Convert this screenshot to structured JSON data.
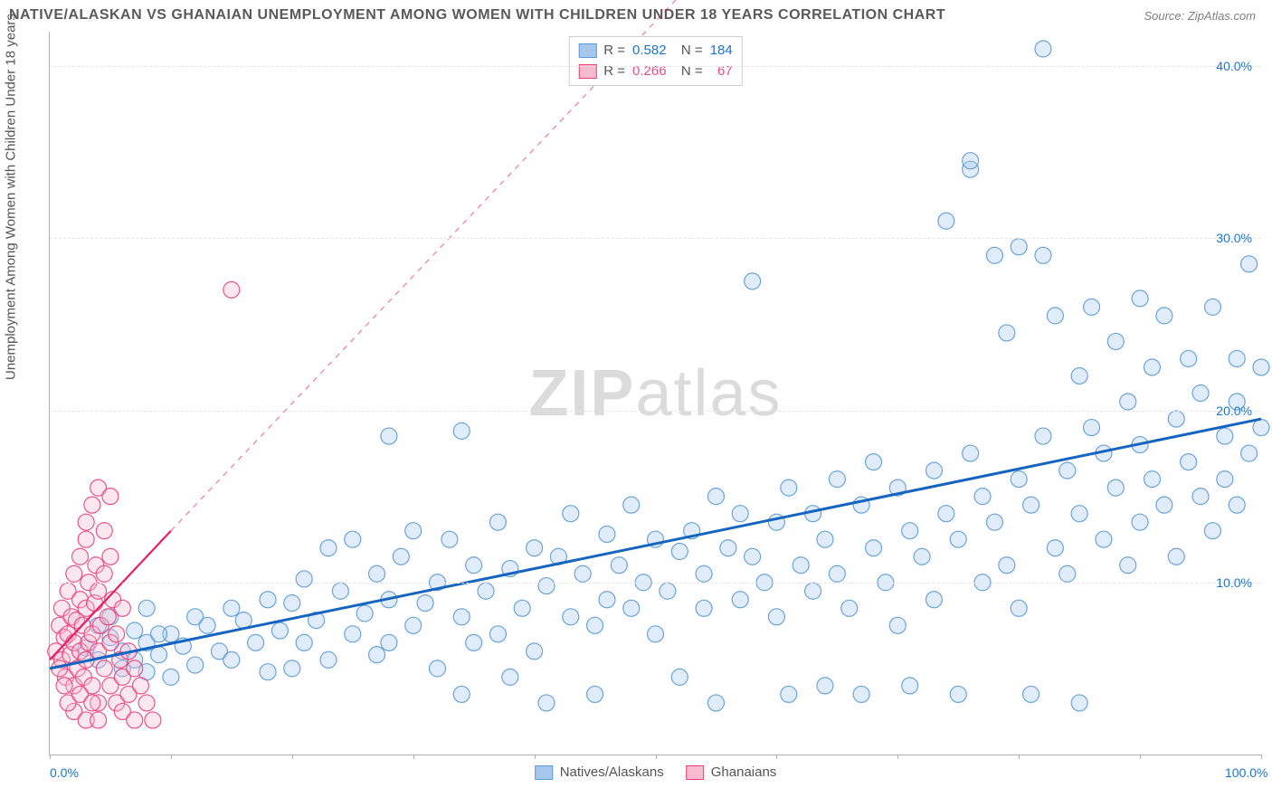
{
  "title": "NATIVE/ALASKAN VS GHANAIAN UNEMPLOYMENT AMONG WOMEN WITH CHILDREN UNDER 18 YEARS CORRELATION CHART",
  "source": "Source: ZipAtlas.com",
  "ylabel": "Unemployment Among Women with Children Under 18 years",
  "watermark_a": "ZIP",
  "watermark_b": "atlas",
  "chart": {
    "type": "scatter",
    "background_color": "#ffffff",
    "grid_color": "#e5e5e5",
    "axis_color": "#b0b0b0",
    "tick_label_color": "#1976d2",
    "xlim": [
      0,
      100
    ],
    "ylim": [
      0,
      42
    ],
    "x_ticks": [
      0,
      10,
      20,
      30,
      40,
      50,
      60,
      70,
      80,
      90,
      100
    ],
    "x_tick_labels": {
      "0": "0.0%",
      "100": "100.0%"
    },
    "y_ticks": [
      10,
      20,
      30,
      40
    ],
    "y_tick_labels": {
      "10": "10.0%",
      "20": "20.0%",
      "30": "30.0%",
      "40": "40.0%"
    },
    "marker_radius": 9,
    "marker_fill_opacity": 0.35,
    "marker_stroke_opacity": 0.9,
    "marker_stroke_width": 1.2,
    "series": [
      {
        "name": "Natives/Alaskans",
        "color_fill": "#a6c8ed",
        "color_stroke": "#5b9bd5",
        "R": "0.582",
        "N": "184",
        "trend": {
          "x1": 0,
          "y1": 5.0,
          "x2": 100,
          "y2": 19.5,
          "dash_from_x": 100,
          "stroke": "#1565c0",
          "stroke_width": 3
        },
        "points": [
          [
            3,
            6.2
          ],
          [
            4,
            5.5
          ],
          [
            5,
            6.8
          ],
          [
            6,
            5.0
          ],
          [
            7,
            7.2
          ],
          [
            8,
            4.8
          ],
          [
            8,
            6.5
          ],
          [
            9,
            5.8
          ],
          [
            10,
            7.0
          ],
          [
            10,
            4.5
          ],
          [
            11,
            6.3
          ],
          [
            12,
            8.0
          ],
          [
            12,
            5.2
          ],
          [
            13,
            7.5
          ],
          [
            14,
            6.0
          ],
          [
            15,
            8.5
          ],
          [
            15,
            5.5
          ],
          [
            16,
            7.8
          ],
          [
            17,
            6.5
          ],
          [
            18,
            9.0
          ],
          [
            18,
            4.8
          ],
          [
            19,
            7.2
          ],
          [
            20,
            8.8
          ],
          [
            20,
            5.0
          ],
          [
            21,
            10.2
          ],
          [
            21,
            6.5
          ],
          [
            22,
            7.8
          ],
          [
            23,
            12.0
          ],
          [
            23,
            5.5
          ],
          [
            24,
            9.5
          ],
          [
            25,
            7.0
          ],
          [
            25,
            12.5
          ],
          [
            26,
            8.2
          ],
          [
            27,
            10.5
          ],
          [
            27,
            5.8
          ],
          [
            28,
            9.0
          ],
          [
            28,
            6.5
          ],
          [
            29,
            11.5
          ],
          [
            30,
            7.5
          ],
          [
            30,
            13.0
          ],
          [
            31,
            8.8
          ],
          [
            32,
            10.0
          ],
          [
            32,
            5.0
          ],
          [
            33,
            12.5
          ],
          [
            34,
            8.0
          ],
          [
            34,
            3.5
          ],
          [
            35,
            11.0
          ],
          [
            35,
            6.5
          ],
          [
            36,
            9.5
          ],
          [
            37,
            13.5
          ],
          [
            37,
            7.0
          ],
          [
            38,
            10.8
          ],
          [
            38,
            4.5
          ],
          [
            39,
            8.5
          ],
          [
            40,
            12.0
          ],
          [
            40,
            6.0
          ],
          [
            41,
            9.8
          ],
          [
            41,
            3.0
          ],
          [
            42,
            11.5
          ],
          [
            43,
            8.0
          ],
          [
            43,
            14.0
          ],
          [
            44,
            10.5
          ],
          [
            45,
            7.5
          ],
          [
            45,
            3.5
          ],
          [
            46,
            12.8
          ],
          [
            46,
            9.0
          ],
          [
            47,
            11.0
          ],
          [
            48,
            8.5
          ],
          [
            48,
            14.5
          ],
          [
            49,
            10.0
          ],
          [
            50,
            12.5
          ],
          [
            50,
            7.0
          ],
          [
            51,
            9.5
          ],
          [
            52,
            11.8
          ],
          [
            52,
            4.5
          ],
          [
            53,
            13.0
          ],
          [
            54,
            8.5
          ],
          [
            54,
            10.5
          ],
          [
            55,
            15.0
          ],
          [
            55,
            3.0
          ],
          [
            56,
            12.0
          ],
          [
            57,
            9.0
          ],
          [
            57,
            14.0
          ],
          [
            58,
            11.5
          ],
          [
            58,
            27.5
          ],
          [
            59,
            10.0
          ],
          [
            60,
            13.5
          ],
          [
            60,
            8.0
          ],
          [
            61,
            15.5
          ],
          [
            61,
            3.5
          ],
          [
            62,
            11.0
          ],
          [
            63,
            14.0
          ],
          [
            63,
            9.5
          ],
          [
            64,
            12.5
          ],
          [
            64,
            4.0
          ],
          [
            65,
            16.0
          ],
          [
            65,
            10.5
          ],
          [
            66,
            8.5
          ],
          [
            67,
            14.5
          ],
          [
            67,
            3.5
          ],
          [
            68,
            12.0
          ],
          [
            68,
            17.0
          ],
          [
            69,
            10.0
          ],
          [
            70,
            15.5
          ],
          [
            70,
            7.5
          ],
          [
            71,
            13.0
          ],
          [
            71,
            4.0
          ],
          [
            72,
            11.5
          ],
          [
            73,
            16.5
          ],
          [
            73,
            9.0
          ],
          [
            74,
            14.0
          ],
          [
            74,
            31.0
          ],
          [
            75,
            12.5
          ],
          [
            75,
            3.5
          ],
          [
            76,
            34.0
          ],
          [
            76,
            17.5
          ],
          [
            76,
            34.5
          ],
          [
            77,
            15.0
          ],
          [
            77,
            10.0
          ],
          [
            78,
            13.5
          ],
          [
            78,
            29.0
          ],
          [
            79,
            11.0
          ],
          [
            79,
            24.5
          ],
          [
            80,
            16.0
          ],
          [
            80,
            8.5
          ],
          [
            80,
            29.5
          ],
          [
            81,
            14.5
          ],
          [
            81,
            3.5
          ],
          [
            82,
            41.0
          ],
          [
            82,
            18.5
          ],
          [
            82,
            29.0
          ],
          [
            83,
            12.0
          ],
          [
            83,
            25.5
          ],
          [
            84,
            16.5
          ],
          [
            84,
            10.5
          ],
          [
            85,
            14.0
          ],
          [
            85,
            22.0
          ],
          [
            85,
            3.0
          ],
          [
            86,
            19.0
          ],
          [
            86,
            26.0
          ],
          [
            87,
            12.5
          ],
          [
            87,
            17.5
          ],
          [
            88,
            15.5
          ],
          [
            88,
            24.0
          ],
          [
            89,
            11.0
          ],
          [
            89,
            20.5
          ],
          [
            90,
            18.0
          ],
          [
            90,
            13.5
          ],
          [
            90,
            26.5
          ],
          [
            91,
            16.0
          ],
          [
            91,
            22.5
          ],
          [
            92,
            14.5
          ],
          [
            92,
            25.5
          ],
          [
            93,
            19.5
          ],
          [
            93,
            11.5
          ],
          [
            94,
            17.0
          ],
          [
            94,
            23.0
          ],
          [
            95,
            15.0
          ],
          [
            95,
            21.0
          ],
          [
            96,
            13.0
          ],
          [
            96,
            26.0
          ],
          [
            97,
            18.5
          ],
          [
            97,
            16.0
          ],
          [
            98,
            14.5
          ],
          [
            98,
            23.0
          ],
          [
            98,
            20.5
          ],
          [
            99,
            17.5
          ],
          [
            99,
            28.5
          ],
          [
            100,
            19.0
          ],
          [
            100,
            22.5
          ],
          [
            28,
            18.5
          ],
          [
            34,
            18.8
          ],
          [
            4,
            7.5
          ],
          [
            5,
            8.0
          ],
          [
            6,
            6.0
          ],
          [
            7,
            5.5
          ],
          [
            8,
            8.5
          ],
          [
            9,
            7.0
          ]
        ]
      },
      {
        "name": "Ghanaians",
        "color_fill": "#f8bbd0",
        "color_stroke": "#ec407a",
        "R": "0.266",
        "N": "67",
        "trend": {
          "x1": 0,
          "y1": 5.5,
          "x2": 10,
          "y2": 13.0,
          "dash_to_x": 60,
          "dash_to_y": 50,
          "stroke": "#e91e63",
          "stroke_width": 2.2
        },
        "points": [
          [
            0.5,
            6.0
          ],
          [
            0.8,
            7.5
          ],
          [
            1.0,
            5.5
          ],
          [
            1.0,
            8.5
          ],
          [
            1.2,
            6.8
          ],
          [
            1.3,
            4.5
          ],
          [
            1.5,
            7.0
          ],
          [
            1.5,
            9.5
          ],
          [
            1.7,
            5.8
          ],
          [
            1.8,
            8.0
          ],
          [
            2.0,
            6.5
          ],
          [
            2.0,
            10.5
          ],
          [
            2.0,
            4.0
          ],
          [
            2.2,
            7.8
          ],
          [
            2.3,
            5.0
          ],
          [
            2.5,
            9.0
          ],
          [
            2.5,
            6.0
          ],
          [
            2.5,
            11.5
          ],
          [
            2.7,
            7.5
          ],
          [
            2.8,
            4.5
          ],
          [
            3.0,
            8.5
          ],
          [
            3.0,
            5.5
          ],
          [
            3.0,
            12.5
          ],
          [
            3.0,
            13.5
          ],
          [
            3.2,
            10.0
          ],
          [
            3.2,
            6.5
          ],
          [
            3.5,
            7.0
          ],
          [
            3.5,
            14.5
          ],
          [
            3.5,
            4.0
          ],
          [
            3.7,
            8.8
          ],
          [
            3.8,
            11.0
          ],
          [
            4.0,
            6.0
          ],
          [
            4.0,
            9.5
          ],
          [
            4.0,
            15.5
          ],
          [
            4.0,
            3.0
          ],
          [
            4.2,
            7.5
          ],
          [
            4.5,
            5.0
          ],
          [
            4.5,
            10.5
          ],
          [
            4.5,
            13.0
          ],
          [
            4.8,
            8.0
          ],
          [
            5.0,
            6.5
          ],
          [
            5.0,
            11.5
          ],
          [
            5.0,
            4.0
          ],
          [
            5.0,
            15.0
          ],
          [
            5.2,
            9.0
          ],
          [
            5.5,
            7.0
          ],
          [
            5.5,
            3.0
          ],
          [
            5.8,
            5.5
          ],
          [
            6.0,
            8.5
          ],
          [
            6.0,
            4.5
          ],
          [
            6.0,
            2.5
          ],
          [
            6.5,
            6.0
          ],
          [
            6.5,
            3.5
          ],
          [
            7.0,
            5.0
          ],
          [
            7.0,
            2.0
          ],
          [
            7.5,
            4.0
          ],
          [
            8.0,
            3.0
          ],
          [
            8.5,
            2.0
          ],
          [
            2.0,
            2.5
          ],
          [
            3.0,
            2.0
          ],
          [
            4.0,
            2.0
          ],
          [
            1.5,
            3.0
          ],
          [
            0.8,
            5.0
          ],
          [
            1.2,
            4.0
          ],
          [
            2.5,
            3.5
          ],
          [
            3.5,
            3.0
          ],
          [
            15,
            27.0
          ]
        ]
      }
    ],
    "bottom_legend": [
      {
        "label": "Natives/Alaskans",
        "fill": "#a6c8ed",
        "stroke": "#5b9bd5"
      },
      {
        "label": "Ghanaians",
        "fill": "#f8bbd0",
        "stroke": "#ec407a"
      }
    ]
  }
}
